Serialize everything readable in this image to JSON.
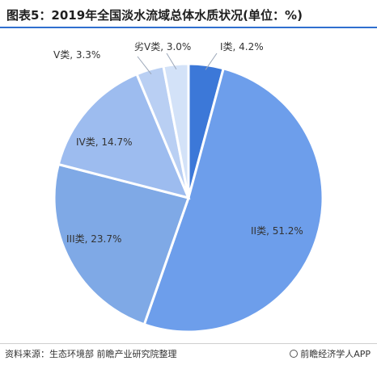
{
  "chart_data": {
    "type": "pie",
    "title": "图表5：2019年全国淡水流域总体水质状况(单位：%)",
    "categories": [
      "I类",
      "II类",
      "III类",
      "IV类",
      "V类",
      "劣V类"
    ],
    "values": [
      4.2,
      51.2,
      23.7,
      14.7,
      3.3,
      3.0
    ],
    "labels": [
      "I类, 4.2%",
      "II类, 51.2%",
      "III类, 23.7%",
      "IV类, 14.7%",
      "V类, 3.3%",
      "劣V类, 3.0%"
    ],
    "colors": [
      "#3c78d8",
      "#6d9eeb",
      "#7fa9e6",
      "#9dbcef",
      "#b9cff3",
      "#d3e2f8"
    ],
    "start_position": "12 o'clock, clockwise",
    "legend": "none"
  },
  "footer": {
    "source": "资料来源：生态环境部 前瞻产业研究院整理",
    "brand": "前瞻经济学人APP"
  }
}
